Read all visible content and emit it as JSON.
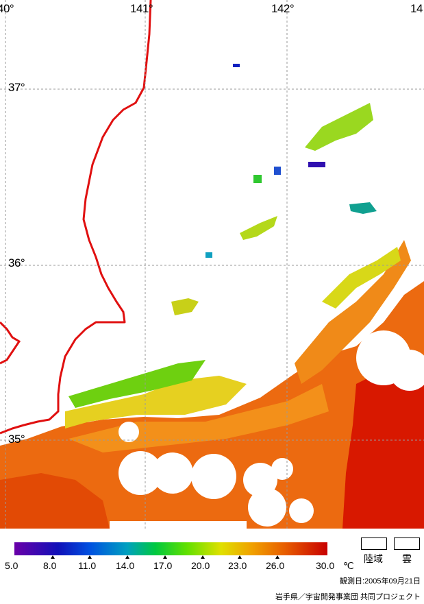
{
  "map": {
    "lon_labels": [
      "40°",
      "141°",
      "142°",
      "14"
    ],
    "lat_labels": [
      "37°",
      "36°",
      "35°"
    ]
  },
  "legend": {
    "ticks": [
      "5.0",
      "8.0",
      "11.0",
      "14.0",
      "17.0",
      "20.0",
      "23.0",
      "26.0",
      "30.0"
    ],
    "unit": "℃",
    "land_label": "陸域",
    "cloud_label": "雲",
    "colors": {
      "purple": "#6a00a8",
      "blue": "#1010b8",
      "cyan": "#00a0c0",
      "green": "#00c840",
      "yellow": "#e0e000",
      "orange": "#f0a000",
      "red": "#c80000",
      "coastline": "#e01010"
    }
  },
  "footer": {
    "date": "観測日:2005年09月21日",
    "credit": "岩手県／宇宙開発事業団 共同プロジェクト"
  }
}
